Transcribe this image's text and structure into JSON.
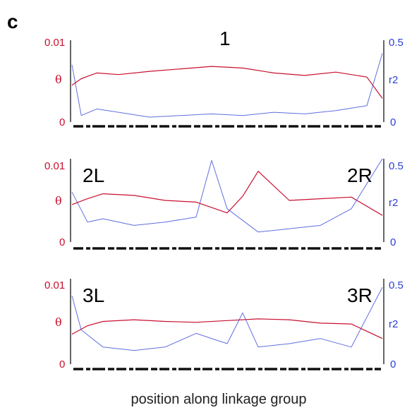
{
  "figure": {
    "panel_letter": "c",
    "xlabel": "position along linkage group"
  },
  "chart_data": [
    {
      "type": "line",
      "labels": [
        "1"
      ],
      "y_left": {
        "label": "θ",
        "ticks": [
          "0.01",
          "0"
        ],
        "lim": [
          0,
          0.01
        ],
        "color": "#c8102e"
      },
      "y_right": {
        "label": "r2",
        "ticks": [
          "0.5",
          "0"
        ],
        "lim": [
          0,
          0.5
        ],
        "color": "#2b3fd6"
      },
      "series": [
        {
          "axis": "left",
          "color": "#c8102e",
          "x": [
            0,
            0.03,
            0.08,
            0.15,
            0.25,
            0.35,
            0.45,
            0.55,
            0.65,
            0.75,
            0.85,
            0.95,
            1.0
          ],
          "values": [
            0.0045,
            0.0053,
            0.006,
            0.0058,
            0.0062,
            0.0065,
            0.0068,
            0.0066,
            0.006,
            0.0057,
            0.0061,
            0.0055,
            0.0029
          ]
        },
        {
          "axis": "right",
          "color": "#2b3fd6",
          "x": [
            0,
            0.03,
            0.08,
            0.15,
            0.25,
            0.35,
            0.45,
            0.55,
            0.65,
            0.75,
            0.85,
            0.95,
            1.0
          ],
          "values": [
            0.35,
            0.04,
            0.08,
            0.06,
            0.03,
            0.04,
            0.05,
            0.04,
            0.06,
            0.05,
            0.07,
            0.1,
            0.42
          ]
        }
      ]
    },
    {
      "type": "line",
      "labels": [
        "2L",
        "2R"
      ],
      "y_left": {
        "label": "θ",
        "ticks": [
          "0.01",
          "0"
        ],
        "lim": [
          0,
          0.01
        ],
        "color": "#c8102e"
      },
      "y_right": {
        "label": "r2",
        "ticks": [
          "0.5",
          "0"
        ],
        "lim": [
          0,
          0.5
        ],
        "color": "#2b3fd6"
      },
      "series": [
        {
          "axis": "left",
          "color": "#c8102e",
          "x": [
            0,
            0.05,
            0.1,
            0.2,
            0.3,
            0.4,
            0.5,
            0.55,
            0.6,
            0.7,
            0.8,
            0.9,
            1.0
          ],
          "values": [
            0.0045,
            0.0052,
            0.0058,
            0.0056,
            0.005,
            0.0048,
            0.0035,
            0.0055,
            0.0085,
            0.005,
            0.0052,
            0.0054,
            0.0032
          ]
        },
        {
          "axis": "right",
          "color": "#2b3fd6",
          "x": [
            0,
            0.05,
            0.1,
            0.2,
            0.3,
            0.4,
            0.45,
            0.5,
            0.6,
            0.7,
            0.8,
            0.9,
            1.0
          ],
          "values": [
            0.3,
            0.12,
            0.14,
            0.1,
            0.12,
            0.15,
            0.49,
            0.2,
            0.06,
            0.08,
            0.1,
            0.2,
            0.5
          ]
        }
      ]
    },
    {
      "type": "line",
      "labels": [
        "3L",
        "3R"
      ],
      "y_left": {
        "label": "θ",
        "ticks": [
          "0.01",
          "0"
        ],
        "lim": [
          0,
          0.01
        ],
        "color": "#c8102e"
      },
      "y_right": {
        "label": "r2",
        "ticks": [
          "0.5",
          "0"
        ],
        "lim": [
          0,
          0.5
        ],
        "color": "#2b3fd6"
      },
      "series": [
        {
          "axis": "left",
          "color": "#c8102e",
          "x": [
            0,
            0.05,
            0.1,
            0.2,
            0.3,
            0.4,
            0.5,
            0.6,
            0.7,
            0.8,
            0.9,
            1.0
          ],
          "values": [
            0.0035,
            0.0045,
            0.005,
            0.0052,
            0.005,
            0.0049,
            0.0051,
            0.0053,
            0.0052,
            0.0048,
            0.0047,
            0.003
          ]
        },
        {
          "axis": "right",
          "color": "#2b3fd6",
          "x": [
            0,
            0.03,
            0.1,
            0.2,
            0.3,
            0.4,
            0.5,
            0.55,
            0.6,
            0.7,
            0.8,
            0.9,
            1.0
          ],
          "values": [
            0.4,
            0.2,
            0.1,
            0.08,
            0.1,
            0.18,
            0.12,
            0.3,
            0.1,
            0.12,
            0.15,
            0.1,
            0.45
          ]
        }
      ]
    }
  ]
}
